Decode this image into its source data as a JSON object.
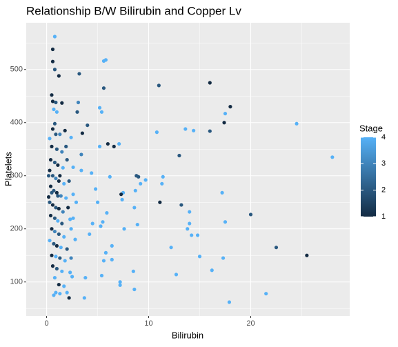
{
  "chart_data": {
    "type": "scatter",
    "title": "Relationship B/W Bilirubin and Copper Lv",
    "xlabel": "Bilirubin",
    "ylabel": "Platelets",
    "xlim": [
      -2,
      29.7
    ],
    "xticks": [
      0,
      10,
      20
    ],
    "ylim": [
      36,
      588
    ],
    "yticks": [
      100,
      200,
      300,
      400,
      500
    ],
    "grid": true,
    "colorbar": {
      "title": "Stage",
      "lim": [
        1,
        4
      ],
      "ticks": [
        1,
        2,
        3,
        4
      ],
      "low": "#132B43",
      "high": "#56B1F7"
    },
    "x": [
      28,
      25.5,
      24.5,
      22.5,
      21.5,
      20,
      18,
      17.9,
      17.5,
      17.4,
      17.5,
      17.2,
      17.3,
      16.2,
      16,
      16,
      15,
      14.8,
      14.4,
      14.2,
      14,
      14,
      13.8,
      13.6,
      13.2,
      13,
      12.7,
      12.2,
      11.4,
      11.3,
      11.1,
      11,
      10.8,
      9.7,
      9.2,
      9,
      8.8,
      8.7,
      8.6,
      8.9,
      8.5,
      8.6,
      7.6,
      7.4,
      7.5,
      7.3,
      7.2,
      7.2,
      7.1,
      6.6,
      6.4,
      6.4,
      6.2,
      6,
      5.8,
      5.6,
      5.6,
      5.4,
      5.2,
      5.2,
      5.3,
      5.5,
      5.9,
      5.8,
      5.6,
      5.4,
      5,
      4.8,
      4.4,
      4.5,
      4.2,
      4,
      3.8,
      3.5,
      3.4,
      3.4,
      3.2,
      3.1,
      3,
      2.9,
      2.6,
      2.6,
      2.4,
      2.2,
      2,
      3.7,
      0.8,
      0.6,
      0.6,
      0.8,
      1.2,
      0.5,
      0.6,
      0.9,
      1.5,
      0.7,
      1,
      0.8,
      0.6,
      0.9,
      1.3,
      1.8,
      0.3,
      0.5,
      1,
      1.5,
      0.4,
      0.8,
      1.1,
      1.6,
      2,
      0.3,
      0.6,
      0.9,
      1.2,
      1.7,
      2.2,
      0.4,
      0.7,
      1,
      1.4,
      1.9,
      0.3,
      0.6,
      0.9,
      1.2,
      1.6,
      2.1,
      0.4,
      0.8,
      1.1,
      1.5,
      2.3,
      0.5,
      0.8,
      1.2,
      1.7,
      0.3,
      0.7,
      1,
      1.4,
      2,
      0.5,
      0.9,
      1.3,
      1.8,
      0.6,
      1,
      1.5,
      2.3,
      0.8,
      1.2,
      1.7,
      0.9,
      1.3,
      0.7,
      2.5,
      2.4,
      2.6,
      2.8,
      0.2,
      0.2,
      0.5,
      1.3,
      1.9,
      2.4,
      1.1
    ],
    "y": [
      335,
      150,
      398,
      165,
      78,
      227,
      430,
      62,
      417,
      400,
      213,
      268,
      145,
      122,
      475,
      384,
      148,
      188,
      385,
      188,
      210,
      232,
      200,
      388,
      245,
      338,
      114,
      165,
      298,
      285,
      250,
      470,
      382,
      292,
      285,
      298,
      300,
      272,
      240,
      208,
      120,
      86,
      200,
      255,
      268,
      265,
      100,
      94,
      360,
      355,
      142,
      168,
      298,
      360,
      518,
      516,
      465,
      420,
      428,
      355,
      205,
      213,
      230,
      155,
      140,
      112,
      250,
      275,
      305,
      210,
      190,
      395,
      108,
      380,
      340,
      310,
      492,
      438,
      420,
      250,
      316,
      220,
      200,
      70,
      80,
      70,
      562,
      538,
      515,
      500,
      488,
      452,
      440,
      438,
      437,
      425,
      420,
      398,
      388,
      378,
      378,
      385,
      370,
      355,
      350,
      345,
      330,
      325,
      320,
      315,
      330,
      310,
      300,
      295,
      290,
      285,
      290,
      280,
      272,
      268,
      262,
      258,
      250,
      245,
      240,
      238,
      232,
      240,
      225,
      220,
      215,
      210,
      218,
      200,
      195,
      190,
      185,
      178,
      172,
      168,
      165,
      162,
      150,
      148,
      145,
      140,
      130,
      125,
      120,
      118,
      108,
      95,
      92,
      80,
      78,
      75,
      110,
      145,
      265,
      180,
      300,
      260,
      268,
      300,
      355,
      372,
      262
    ],
    "stage": [
      4,
      1,
      4,
      2,
      4,
      2,
      1,
      4,
      4,
      1,
      4,
      4,
      4,
      4,
      1,
      2,
      4,
      4,
      4,
      4,
      4,
      4,
      4,
      4,
      2,
      2,
      4,
      4,
      4,
      4,
      1,
      2,
      4,
      4,
      4,
      2,
      2,
      4,
      4,
      4,
      4,
      4,
      4,
      4,
      4,
      1,
      4,
      4,
      4,
      1,
      4,
      4,
      4,
      1,
      4,
      4,
      2,
      4,
      4,
      4,
      4,
      4,
      4,
      4,
      4,
      4,
      4,
      4,
      4,
      4,
      4,
      2,
      4,
      1,
      3,
      4,
      2,
      3,
      2,
      4,
      4,
      4,
      4,
      1,
      4,
      4,
      4,
      1,
      1,
      2,
      1,
      1,
      1,
      2,
      1,
      4,
      4,
      2,
      1,
      2,
      3,
      1,
      4,
      1,
      2,
      3,
      1,
      2,
      1,
      4,
      2,
      1,
      2,
      3,
      1,
      4,
      2,
      1,
      2,
      1,
      3,
      4,
      2,
      1,
      2,
      1,
      3,
      1,
      1,
      2,
      4,
      2,
      4,
      1,
      3,
      2,
      4,
      4,
      2,
      1,
      4,
      2,
      1,
      4,
      2,
      4,
      1,
      2,
      4,
      4,
      4,
      1,
      4,
      4,
      4,
      4,
      4,
      3,
      4,
      4,
      2,
      1,
      2,
      1,
      2,
      4,
      2
    ]
  }
}
